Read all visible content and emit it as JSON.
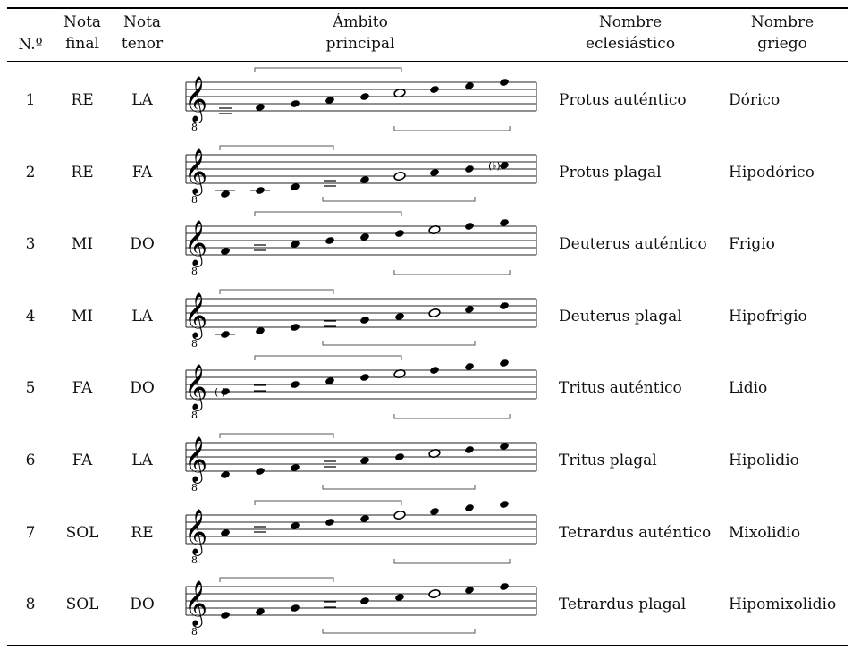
{
  "header": {
    "num": "N.º",
    "final_1": "Nota",
    "final_2": "final",
    "tenor_1": "Nota",
    "tenor_2": "tenor",
    "ambito_1": "Ámbito",
    "ambito_2": "principal",
    "ecl_1": "Nombre",
    "ecl_2": "eclesiástico",
    "gri_1": "Nombre",
    "gri_2": "griego"
  },
  "rows": [
    {
      "num": "1",
      "final": "RE",
      "tenor": "LA",
      "ecclesiastical": "Protus auténtico",
      "greek": "Dórico",
      "notes": [
        2,
        3,
        4,
        5,
        6,
        7,
        8,
        9,
        10
      ],
      "final_idx": 0,
      "tenor_idx": 5,
      "bracket": "above",
      "flat_idx": -1,
      "paren_idx": -1
    },
    {
      "num": "2",
      "final": "RE",
      "tenor": "FA",
      "ecclesiastical": "Protus plagal",
      "greek": "Hipodórico",
      "notes": [
        -1,
        0,
        1,
        2,
        3,
        4,
        5,
        6,
        7
      ],
      "final_idx": 3,
      "tenor_idx": 5,
      "bracket": "below",
      "flat_idx": 8,
      "paren_idx": -1
    },
    {
      "num": "3",
      "final": "MI",
      "tenor": "DO",
      "ecclesiastical": "Deuterus auténtico",
      "greek": "Frigio",
      "notes": [
        3,
        4,
        5,
        6,
        7,
        8,
        9,
        10,
        11
      ],
      "final_idx": 1,
      "tenor_idx": 6,
      "bracket": "above",
      "flat_idx": -1,
      "paren_idx": -1
    },
    {
      "num": "4",
      "final": "MI",
      "tenor": "LA",
      "ecclesiastical": "Deuterus plagal",
      "greek": "Hipofrigio",
      "notes": [
        0,
        1,
        2,
        3,
        4,
        5,
        6,
        7,
        8
      ],
      "final_idx": 3,
      "tenor_idx": 6,
      "bracket": "below",
      "flat_idx": -1,
      "paren_idx": -1
    },
    {
      "num": "5",
      "final": "FA",
      "tenor": "DO",
      "ecclesiastical": "Tritus auténtico",
      "greek": "Lidio",
      "notes": [
        4,
        5,
        6,
        7,
        8,
        9,
        10,
        11,
        12
      ],
      "final_idx": 1,
      "tenor_idx": 5,
      "bracket": "above",
      "flat_idx": -1,
      "paren_idx": 0
    },
    {
      "num": "6",
      "final": "FA",
      "tenor": "LA",
      "ecclesiastical": "Tritus plagal",
      "greek": "Hipolidio",
      "notes": [
        1,
        2,
        3,
        4,
        5,
        6,
        7,
        8,
        9
      ],
      "final_idx": 3,
      "tenor_idx": 6,
      "bracket": "below",
      "flat_idx": -1,
      "paren_idx": -1
    },
    {
      "num": "7",
      "final": "SOL",
      "tenor": "RE",
      "ecclesiastical": "Tetrardus auténtico",
      "greek": "Mixolidio",
      "notes": [
        5,
        6,
        7,
        8,
        9,
        10,
        11,
        12,
        13
      ],
      "final_idx": 1,
      "tenor_idx": 5,
      "bracket": "above",
      "flat_idx": -1,
      "paren_idx": -1
    },
    {
      "num": "8",
      "final": "SOL",
      "tenor": "DO",
      "ecclesiastical": "Tetrardus plagal",
      "greek": "Hipomixolidio",
      "notes": [
        2,
        3,
        4,
        5,
        6,
        7,
        8,
        9,
        10
      ],
      "final_idx": 3,
      "tenor_idx": 6,
      "bracket": "below",
      "flat_idx": -1,
      "paren_idx": -1
    }
  ]
}
